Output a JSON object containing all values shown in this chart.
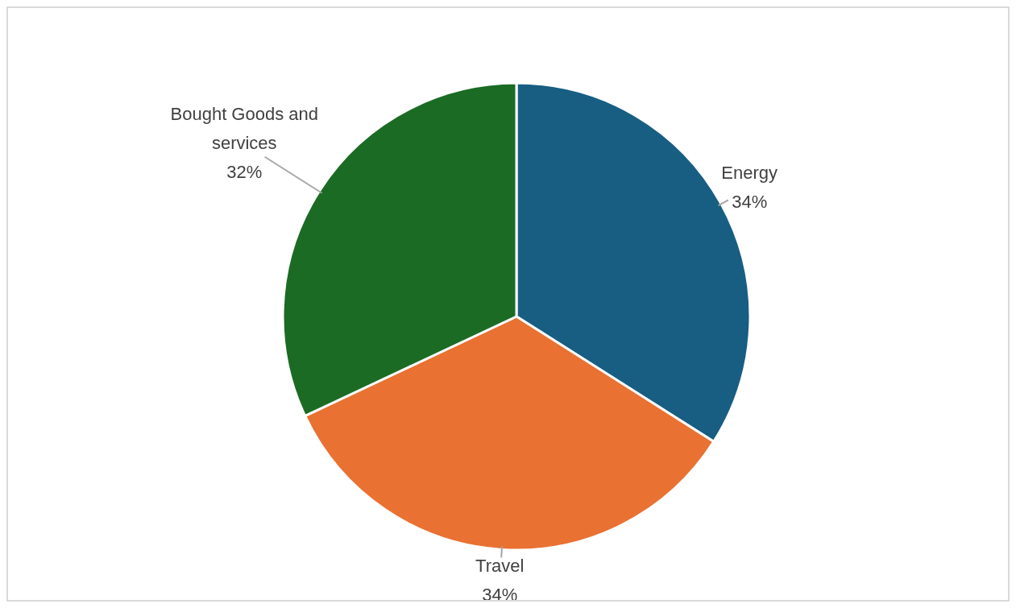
{
  "chart_data": {
    "type": "pie",
    "categories": [
      "Energy",
      "Travel",
      "Bought Goods and services"
    ],
    "values": [
      34,
      34,
      32
    ],
    "colors": [
      "#175e82",
      "#e97132",
      "#1b6b24"
    ],
    "value_labels": [
      "34%",
      "34%",
      "32%"
    ],
    "legend": false
  }
}
